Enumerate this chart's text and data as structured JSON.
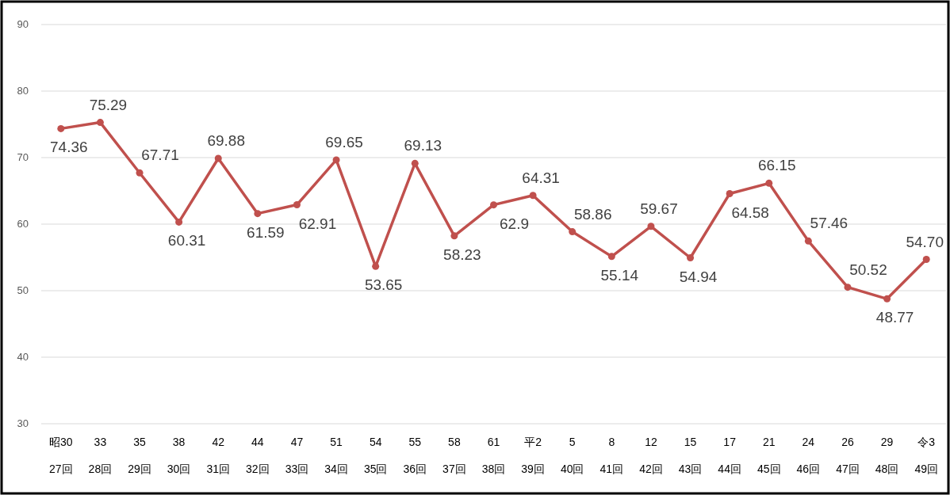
{
  "chart_data": {
    "type": "line",
    "categories": [
      "昭30\n27回",
      "33\n28回",
      "35\n29回",
      "38\n30回",
      "42\n31回",
      "44\n32回",
      "47\n33回",
      "51\n34回",
      "54\n35回",
      "55\n36回",
      "58\n37回",
      "61\n38回",
      "平2\n39回",
      "5\n40回",
      "8\n41回",
      "12\n42回",
      "15\n43回",
      "17\n44回",
      "21\n45回",
      "24\n46回",
      "26\n47回",
      "29\n48回",
      "令3\n49回"
    ],
    "series": [
      {
        "color": "#c0504d",
        "values": [
          74.36,
          75.29,
          67.71,
          60.31,
          69.88,
          61.59,
          62.91,
          69.65,
          53.65,
          69.13,
          58.23,
          62.9,
          64.31,
          58.86,
          55.14,
          59.67,
          54.94,
          64.58,
          66.15,
          57.46,
          50.52,
          48.77,
          54.7
        ],
        "value_labels": [
          "74.36",
          "75.29",
          "67.71",
          "60.31",
          "69.88",
          "61.59",
          "62.91",
          "69.65",
          "53.65",
          "69.13",
          "58.23",
          "62.9",
          "64.31",
          "58.86",
          "55.14",
          "59.67",
          "54.94",
          "64.58",
          "66.15",
          "57.46",
          "50.52",
          "48.77",
          "54.70"
        ]
      }
    ],
    "ylim": [
      30,
      90
    ],
    "yticks": [
      30,
      40,
      50,
      60,
      70,
      80,
      90
    ],
    "grid": "y",
    "marker": "circle",
    "line_style": "solid"
  }
}
